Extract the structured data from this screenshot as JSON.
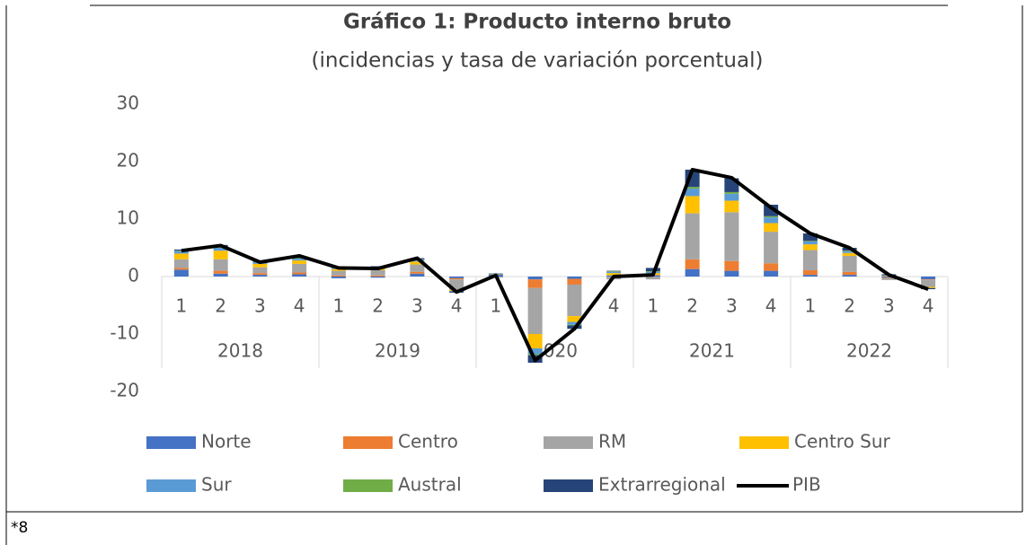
{
  "chart_data": {
    "type": "stacked_bar_line",
    "title": "Gráfico 1: Producto interno bruto",
    "subtitle": "(incidencias y tasa de variación porcentual)",
    "categories": [
      "1",
      "2",
      "3",
      "4",
      "1",
      "2",
      "3",
      "4",
      "1",
      "2",
      "3",
      "4",
      "1",
      "2",
      "3",
      "4",
      "1",
      "2",
      "3",
      "4"
    ],
    "x_groups": [
      "2018",
      "2019",
      "2020",
      "2021",
      "2022"
    ],
    "ylim": [
      -20,
      30
    ],
    "yticks": [
      -20,
      -10,
      0,
      10,
      20,
      30
    ],
    "series": [
      {
        "name": "Norte",
        "color": "#4472c4",
        "kind": "bar",
        "values": [
          1.2,
          0.5,
          0.3,
          0.4,
          -0.3,
          -0.2,
          0.5,
          -0.3,
          0.4,
          -0.5,
          -0.4,
          0.2,
          0.2,
          1.3,
          1.0,
          1.0,
          0.3,
          0.3,
          -0.2,
          -0.5
        ]
      },
      {
        "name": "Centro",
        "color": "#ed7d31",
        "kind": "bar",
        "values": [
          0.3,
          0.5,
          0.3,
          0.3,
          0.2,
          0.2,
          0.3,
          -0.2,
          0,
          -1.5,
          -1.0,
          0,
          0.1,
          1.7,
          1.7,
          1.3,
          0.8,
          0.5,
          -0.1,
          -0.1
        ]
      },
      {
        "name": "RM",
        "color": "#a5a5a5",
        "kind": "bar",
        "values": [
          1.5,
          2.0,
          1.0,
          1.5,
          0.8,
          0.9,
          1.3,
          -1.8,
          -0.2,
          -8,
          -5.5,
          -0.5,
          -0.5,
          8.0,
          8.5,
          5.5,
          3.5,
          2.8,
          -0.3,
          -1.2
        ]
      },
      {
        "name": "Centro Sur",
        "color": "#ffc000",
        "kind": "bar",
        "values": [
          1.0,
          1.5,
          0.6,
          0.6,
          0.3,
          0.3,
          0.5,
          -0.2,
          0.1,
          -2.5,
          -1.0,
          0.4,
          0.3,
          3.0,
          2.0,
          1.5,
          1.0,
          0.5,
          0.1,
          -0.2
        ]
      },
      {
        "name": "Sur",
        "color": "#5b9bd5",
        "kind": "bar",
        "values": [
          0.4,
          0.5,
          0.3,
          0.3,
          0.2,
          0.2,
          0.3,
          -0.1,
          0.1,
          -1.0,
          -0.5,
          0.2,
          0.2,
          1.3,
          1.2,
          1.0,
          0.5,
          0.3,
          0.1,
          0
        ]
      },
      {
        "name": "Austral",
        "color": "#70ad47",
        "kind": "bar",
        "values": [
          0.1,
          0.2,
          0.1,
          0.1,
          0.1,
          0.1,
          0.1,
          0,
          0,
          -0.2,
          -0.1,
          0.1,
          0.1,
          0.3,
          0.3,
          0.2,
          0.1,
          0.1,
          0,
          0
        ]
      },
      {
        "name": "Extrarregional",
        "color": "#264478",
        "kind": "bar",
        "values": [
          0.2,
          0.3,
          0.1,
          0.2,
          0.1,
          0.1,
          0.2,
          -0.2,
          0,
          -1.3,
          -0.6,
          0.1,
          0.6,
          3.0,
          2.4,
          2.0,
          1.3,
          0.5,
          0.2,
          -0.2
        ]
      },
      {
        "name": "PIB",
        "color": "#000000",
        "kind": "line",
        "values": [
          4.5,
          5.4,
          2.5,
          3.6,
          1.5,
          1.4,
          3.2,
          -2.7,
          0.2,
          -14.6,
          -9.1,
          0.0,
          0.3,
          18.6,
          17.2,
          12.0,
          7.5,
          5.0,
          0.3,
          -2.2
        ]
      }
    ]
  },
  "footnote": "*8"
}
